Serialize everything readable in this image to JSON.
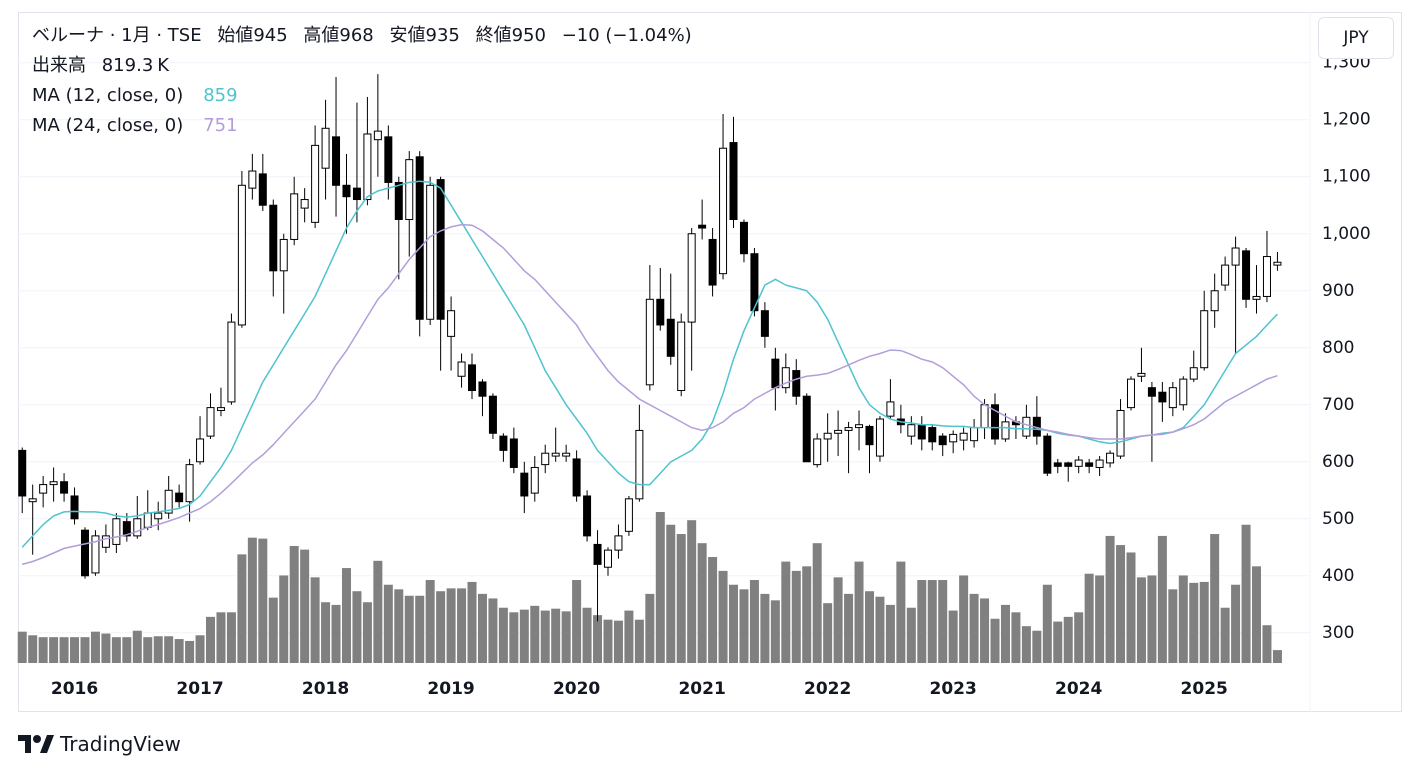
{
  "header": {
    "title": "ベルーナ · 1月 · TSE",
    "open_label": "始値",
    "high_label": "高値",
    "low_label": "安値",
    "close_label": "終値",
    "change": "−10 (−1.04%)",
    "volume_label": "出来高",
    "volume_unit": "K",
    "currency": "JPY",
    "brand": "TradingView"
  },
  "chart_data": {
    "type": "candlestick",
    "categories": [
      null,
      null,
      null,
      null,
      null,
      "2016",
      null,
      null,
      null,
      null,
      null,
      null,
      null,
      null,
      null,
      null,
      null,
      "2017",
      null,
      null,
      null,
      null,
      null,
      null,
      null,
      null,
      null,
      null,
      null,
      "2018",
      null,
      null,
      null,
      null,
      null,
      null,
      null,
      null,
      null,
      null,
      null,
      "2019",
      null,
      null,
      null,
      null,
      null,
      null,
      null,
      null,
      null,
      null,
      null,
      "2020",
      null,
      null,
      null,
      null,
      null,
      null,
      null,
      null,
      null,
      null,
      null,
      "2021",
      null,
      null,
      null,
      null,
      null,
      null,
      null,
      null,
      null,
      null,
      null,
      "2022",
      null,
      null,
      null,
      null,
      null,
      null,
      null,
      null,
      null,
      null,
      null,
      "2023",
      null,
      null,
      null,
      null,
      null,
      null,
      null,
      null,
      null,
      null,
      null,
      "2024",
      null,
      null,
      null,
      null,
      null,
      null,
      null,
      null,
      null,
      null,
      null,
      "2025",
      null,
      null,
      null,
      null,
      null,
      null,
      null
    ],
    "open": [
      620,
      530,
      545,
      560,
      565,
      540,
      480,
      405,
      450,
      455,
      495,
      470,
      485,
      500,
      510,
      545,
      530,
      600,
      645,
      690,
      705,
      840,
      1080,
      1105,
      1050,
      935,
      990,
      1045,
      1020,
      1115,
      1170,
      1085,
      1080,
      1060,
      1165,
      1170,
      1090,
      1025,
      1135,
      850,
      1095,
      820,
      750,
      770,
      740,
      715,
      645,
      640,
      580,
      545,
      595,
      610,
      610,
      605,
      540,
      455,
      415,
      445,
      478,
      535,
      735,
      885,
      850,
      725,
      845,
      1015,
      990,
      930,
      1160,
      1020,
      965,
      865,
      780,
      730,
      760,
      715,
      595,
      640,
      650,
      655,
      660,
      662,
      610,
      680,
      675,
      645,
      665,
      660,
      645,
      635,
      638,
      637,
      660,
      700,
      640,
      670,
      645,
      678,
      645,
      598,
      598,
      592,
      598,
      590,
      598,
      610,
      695,
      750,
      730,
      722,
      695,
      700,
      745,
      765,
      865,
      910,
      945,
      970,
      885,
      890,
      945
    ],
    "high": [
      625,
      560,
      575,
      590,
      580,
      555,
      485,
      480,
      490,
      510,
      510,
      540,
      550,
      530,
      575,
      560,
      605,
      680,
      720,
      730,
      860,
      1110,
      1140,
      1140,
      1060,
      1000,
      1100,
      1080,
      1190,
      1235,
      1275,
      1140,
      1230,
      1240,
      1280,
      1190,
      1100,
      1145,
      1145,
      1100,
      1100,
      890,
      790,
      790,
      745,
      720,
      650,
      660,
      600,
      610,
      630,
      660,
      630,
      620,
      550,
      480,
      450,
      490,
      540,
      700,
      945,
      940,
      930,
      860,
      1010,
      1060,
      1010,
      1210,
      1205,
      1025,
      975,
      880,
      800,
      790,
      780,
      720,
      650,
      685,
      690,
      670,
      690,
      665,
      680,
      745,
      700,
      680,
      680,
      665,
      650,
      655,
      660,
      675,
      710,
      720,
      685,
      680,
      700,
      715,
      650,
      605,
      600,
      610,
      605,
      610,
      620,
      710,
      750,
      800,
      740,
      740,
      740,
      750,
      795,
      900,
      930,
      960,
      995,
      975,
      945,
      1005,
      968
    ],
    "low": [
      510,
      437,
      520,
      530,
      530,
      490,
      395,
      400,
      440,
      440,
      460,
      465,
      480,
      480,
      500,
      520,
      495,
      595,
      640,
      680,
      700,
      835,
      1060,
      1040,
      890,
      860,
      980,
      1020,
      1010,
      1060,
      1030,
      1000,
      1020,
      1050,
      1100,
      1060,
      920,
      960,
      820,
      840,
      760,
      760,
      730,
      710,
      680,
      640,
      600,
      580,
      510,
      530,
      580,
      600,
      600,
      530,
      460,
      320,
      400,
      430,
      470,
      530,
      725,
      830,
      770,
      715,
      760,
      990,
      890,
      920,
      1010,
      950,
      855,
      800,
      690,
      720,
      700,
      600,
      590,
      600,
      610,
      580,
      620,
      580,
      600,
      675,
      650,
      630,
      620,
      620,
      610,
      615,
      620,
      625,
      640,
      630,
      635,
      640,
      640,
      630,
      575,
      580,
      565,
      580,
      580,
      575,
      590,
      605,
      690,
      740,
      600,
      670,
      680,
      690,
      740,
      760,
      835,
      900,
      790,
      870,
      860,
      880,
      935
    ],
    "close": [
      540,
      535,
      560,
      565,
      545,
      500,
      400,
      470,
      470,
      500,
      470,
      500,
      510,
      510,
      550,
      530,
      595,
      640,
      695,
      695,
      845,
      1085,
      1110,
      1050,
      935,
      990,
      1070,
      1060,
      1155,
      1185,
      1085,
      1065,
      1060,
      1175,
      1180,
      1090,
      1025,
      1130,
      850,
      1085,
      850,
      865,
      775,
      725,
      715,
      650,
      620,
      590,
      540,
      590,
      615,
      615,
      615,
      540,
      470,
      420,
      445,
      470,
      535,
      655,
      885,
      840,
      785,
      845,
      1000,
      1010,
      910,
      1150,
      1025,
      965,
      865,
      820,
      730,
      765,
      715,
      600,
      640,
      650,
      655,
      660,
      665,
      630,
      675,
      705,
      665,
      665,
      640,
      635,
      630,
      648,
      650,
      660,
      700,
      640,
      670,
      665,
      678,
      645,
      580,
      592,
      592,
      603,
      592,
      603,
      615,
      690,
      745,
      755,
      715,
      705,
      730,
      745,
      765,
      865,
      900,
      945,
      975,
      885,
      890,
      960,
      950
    ],
    "up_color": "#ffffff",
    "down_color": "#000000",
    "candle_border": "#000000",
    "volume": {
      "color": "#808080",
      "values": [
        1990,
        1760,
        1640,
        1640,
        1640,
        1640,
        1640,
        1990,
        1870,
        1640,
        1640,
        2050,
        1640,
        1700,
        1700,
        1520,
        1400,
        1760,
        2930,
        3220,
        3220,
        6900,
        7960,
        7900,
        4150,
        5560,
        7430,
        7200,
        5440,
        3860,
        3690,
        6030,
        4560,
        3860,
        6490,
        4970,
        4680,
        4270,
        4270,
        5270,
        4560,
        4740,
        4740,
        5150,
        4390,
        4100,
        3510,
        3220,
        3390,
        3630,
        3330,
        3450,
        3280,
        5270,
        3510,
        3040,
        2750,
        2690,
        3330,
        2750,
        4390,
        9590,
        8780,
        8190,
        9070,
        7610,
        6730,
        5850,
        4970,
        4680,
        5270,
        4390,
        3980,
        6440,
        5850,
        6140,
        7610,
        3800,
        5440,
        4390,
        6440,
        4560,
        4210,
        3690,
        6440,
        3510,
        5270,
        5270,
        5270,
        3330,
        5560,
        4390,
        4100,
        2810,
        3690,
        3220,
        2340,
        2050,
        4970,
        2630,
        2930,
        3220,
        5670,
        5560,
        8070,
        7490,
        7020,
        5440,
        5560,
        8070,
        4680,
        5560,
        5090,
        5150,
        8190,
        3510,
        4970,
        8780,
        6140,
        2400,
        819.3
      ]
    },
    "series": [
      {
        "name": "MA (12, close, 0)",
        "color": "#4fc3cf",
        "values": [
          450,
          470,
          490,
          505,
          512,
          513,
          512,
          512,
          510,
          505,
          503,
          505,
          510,
          512,
          515,
          518,
          525,
          540,
          565,
          590,
          620,
          660,
          700,
          740,
          770,
          800,
          830,
          860,
          890,
          930,
          970,
          1010,
          1040,
          1065,
          1075,
          1080,
          1085,
          1090,
          1092,
          1090,
          1080,
          1050,
          1020,
          990,
          960,
          930,
          900,
          870,
          840,
          800,
          760,
          730,
          700,
          675,
          650,
          620,
          600,
          580,
          565,
          560,
          560,
          580,
          600,
          610,
          620,
          640,
          670,
          720,
          780,
          830,
          870,
          910,
          920,
          910,
          905,
          900,
          880,
          850,
          810,
          770,
          730,
          700,
          685,
          675,
          670,
          668,
          665,
          665,
          663,
          662,
          662,
          660,
          660,
          660,
          660,
          658,
          658,
          657,
          655,
          650,
          647,
          645,
          640,
          635,
          632,
          635,
          640,
          645,
          647,
          650,
          652,
          660,
          680,
          700,
          730,
          760,
          790,
          805,
          820,
          840,
          859
        ]
      },
      {
        "name": "MA (24, close, 0)",
        "color": "#b39ddb",
        "values": [
          420,
          425,
          432,
          440,
          448,
          452,
          456,
          460,
          465,
          468,
          472,
          478,
          485,
          490,
          496,
          502,
          510,
          518,
          530,
          545,
          562,
          580,
          598,
          612,
          630,
          650,
          670,
          690,
          710,
          740,
          770,
          795,
          825,
          855,
          885,
          905,
          930,
          955,
          975,
          995,
          1005,
          1012,
          1016,
          1015,
          1005,
          990,
          975,
          955,
          935,
          920,
          900,
          880,
          860,
          840,
          810,
          785,
          760,
          740,
          725,
          710,
          700,
          690,
          680,
          670,
          660,
          655,
          660,
          670,
          685,
          695,
          710,
          720,
          730,
          738,
          745,
          750,
          752,
          755,
          762,
          770,
          778,
          785,
          790,
          796,
          795,
          788,
          780,
          775,
          765,
          750,
          735,
          715,
          700,
          690,
          680,
          670,
          665,
          660,
          655,
          652,
          648,
          645,
          642,
          640,
          640,
          640,
          642,
          645,
          647,
          648,
          652,
          658,
          665,
          675,
          690,
          705,
          715,
          725,
          735,
          745,
          751
        ]
      }
    ],
    "ylim": [
      247,
      1389
    ],
    "yticks": [
      300,
      400,
      500,
      600,
      700,
      800,
      900,
      {
        "value": 1000,
        "label": "1,000"
      },
      {
        "value": 1100,
        "label": "1,100"
      },
      {
        "value": 1200,
        "label": "1,200"
      },
      {
        "value": 1300,
        "label": "1,300"
      }
    ],
    "grid": true
  }
}
